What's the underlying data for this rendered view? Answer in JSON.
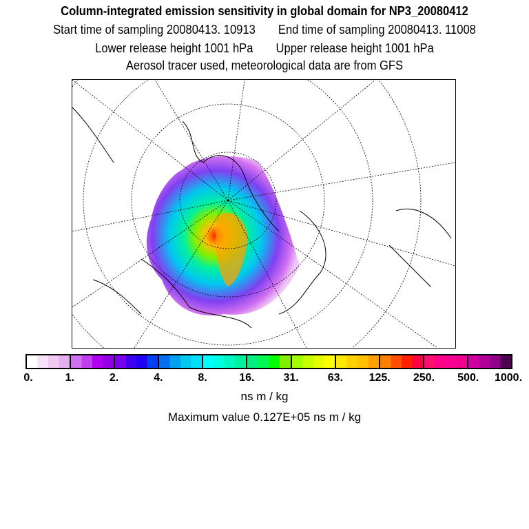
{
  "title": "Column-integrated emission sensitivity in global domain for NP3_20080412",
  "start_time": "Start time of sampling 20080413. 10913",
  "end_time": "End time of sampling 20080413. 11008",
  "lower_height": "Lower release height 1001 hPa",
  "upper_height": "Upper release height 1001 hPa",
  "info": "Aerosol tracer used, meteorological data are from GFS",
  "colorbar": {
    "ticks": [
      "0.",
      "1.",
      "2.",
      "4.",
      "8.",
      "16.",
      "31.",
      "63.",
      "125.",
      "250.",
      "500.",
      "1000."
    ],
    "segments": [
      [
        "#ffffff",
        "#f8e0f8",
        "#f0c8f4",
        "#e6b0f0"
      ],
      [
        "#d070f0",
        "#c040f0",
        "#b000f0",
        "#9000e0"
      ],
      [
        "#7a00f0",
        "#4000f0",
        "#2000f0",
        "#0040f0"
      ],
      [
        "#0070f0",
        "#00a0f0",
        "#00c8f0",
        "#00e0f8"
      ],
      [
        "#00ffff",
        "#00ffe0",
        "#00f8c0",
        "#00f0a0"
      ],
      [
        "#00f080",
        "#00f850",
        "#00ff00",
        "#80f000"
      ],
      [
        "#a0ff00",
        "#c8ff00",
        "#e8ff00",
        "#ffff00"
      ],
      [
        "#ffe800",
        "#ffd000",
        "#ffc000",
        "#ffa000"
      ],
      [
        "#ff8000",
        "#ff5000",
        "#ff2000",
        "#ff0040"
      ],
      [
        "#ff1070",
        "#ff0088",
        "#f80090",
        "#f00090"
      ],
      [
        "#d000a0",
        "#b00098",
        "#900088",
        "#500050"
      ]
    ],
    "units": "ns m / kg"
  },
  "max_value": "Maximum value  0.127E+05 ns m / kg"
}
